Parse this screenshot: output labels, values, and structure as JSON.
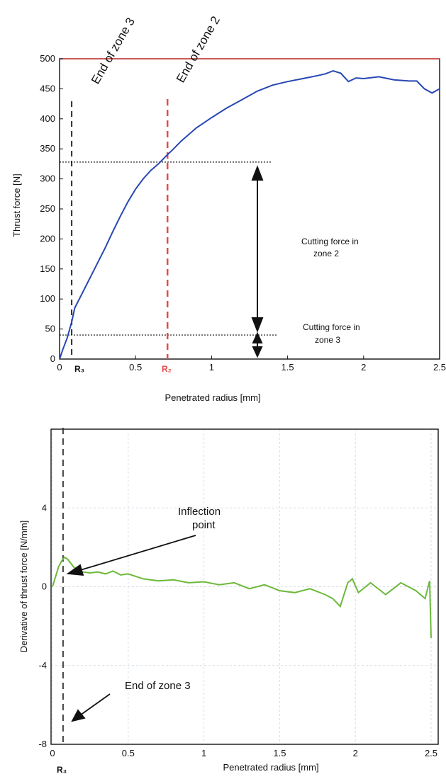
{
  "colors": {
    "line1": "#2747b3",
    "line2": "#6cb93a",
    "red": "#e34b4b",
    "frame_red": "#d8473e",
    "black": "#111111"
  },
  "chart_data": [
    {
      "type": "line",
      "xlabel": "Penetrated radius [mm]",
      "ylabel": "Thrust force [N]",
      "xlim": [
        0,
        2.5
      ],
      "ylim": [
        0,
        500
      ],
      "x_ticks": [
        "0",
        "0.5",
        "1",
        "1.5",
        "2",
        "2.5"
      ],
      "y_ticks": [
        "0",
        "50",
        "100",
        "150",
        "200",
        "250",
        "300",
        "350",
        "400",
        "450",
        "500"
      ],
      "grid": false,
      "series": [
        {
          "x": [
            0.0,
            0.02,
            0.05,
            0.08,
            0.1,
            0.15,
            0.2,
            0.25,
            0.3,
            0.35,
            0.4,
            0.45,
            0.5,
            0.55,
            0.6,
            0.65,
            0.7,
            0.75,
            0.8,
            0.9,
            1.0,
            1.1,
            1.2,
            1.3,
            1.4,
            1.5,
            1.6,
            1.7,
            1.75,
            1.8,
            1.85,
            1.9,
            1.95,
            2.0,
            2.1,
            2.2,
            2.3,
            2.35,
            2.4,
            2.45,
            2.5
          ],
          "y": [
            0,
            15,
            35,
            62,
            85,
            110,
            135,
            160,
            185,
            212,
            238,
            262,
            283,
            300,
            314,
            325,
            338,
            350,
            363,
            385,
            402,
            418,
            432,
            446,
            456,
            462,
            467,
            472,
            475,
            480,
            476,
            462,
            468,
            467,
            470,
            465,
            463,
            463,
            450,
            443,
            450
          ]
        }
      ],
      "vlines": [
        {
          "x": 0.08,
          "label": "R₃",
          "annotation": "End of zone 3"
        },
        {
          "x": 0.71,
          "label": "R₂",
          "annotation": "End of zone 2"
        }
      ],
      "hlines": [
        328,
        40
      ],
      "annotations": [
        "Cutting force in",
        "zone 2",
        "Cutting force in",
        "zone 3"
      ]
    },
    {
      "type": "line",
      "xlabel": "Penetrated radius [mm]",
      "ylabel": "Derivative of thrust force [N/mm]",
      "xlim": [
        0,
        2.5
      ],
      "ylim": [
        -8,
        8
      ],
      "x_ticks": [
        "0",
        "0.5",
        "1",
        "1.5",
        "2",
        "2.5"
      ],
      "y_ticks": [
        "-8",
        "-4",
        "0",
        "4"
      ],
      "grid": true,
      "series": [
        {
          "x": [
            0.0,
            0.02,
            0.04,
            0.06,
            0.08,
            0.1,
            0.12,
            0.14,
            0.17,
            0.2,
            0.25,
            0.3,
            0.35,
            0.4,
            0.45,
            0.5,
            0.6,
            0.7,
            0.8,
            0.9,
            1.0,
            1.1,
            1.2,
            1.3,
            1.4,
            1.5,
            1.6,
            1.7,
            1.8,
            1.85,
            1.9,
            1.95,
            1.98,
            2.02,
            2.1,
            2.2,
            2.3,
            2.4,
            2.46,
            2.49,
            2.5
          ],
          "y": [
            0.0,
            0.5,
            1.0,
            1.3,
            1.5,
            1.4,
            1.2,
            1.0,
            0.8,
            0.75,
            0.7,
            0.75,
            0.65,
            0.8,
            0.6,
            0.65,
            0.4,
            0.3,
            0.35,
            0.2,
            0.25,
            0.1,
            0.2,
            -0.1,
            0.1,
            -0.2,
            -0.3,
            -0.1,
            -0.4,
            -0.6,
            -1.0,
            0.2,
            0.4,
            -0.3,
            0.2,
            -0.4,
            0.2,
            -0.2,
            -0.6,
            0.3,
            -2.6
          ]
        }
      ],
      "vlines": [
        {
          "x": 0.07,
          "label": "R₃"
        }
      ],
      "annotations": [
        "Inflection",
        "point",
        "End of zone 3"
      ]
    }
  ]
}
